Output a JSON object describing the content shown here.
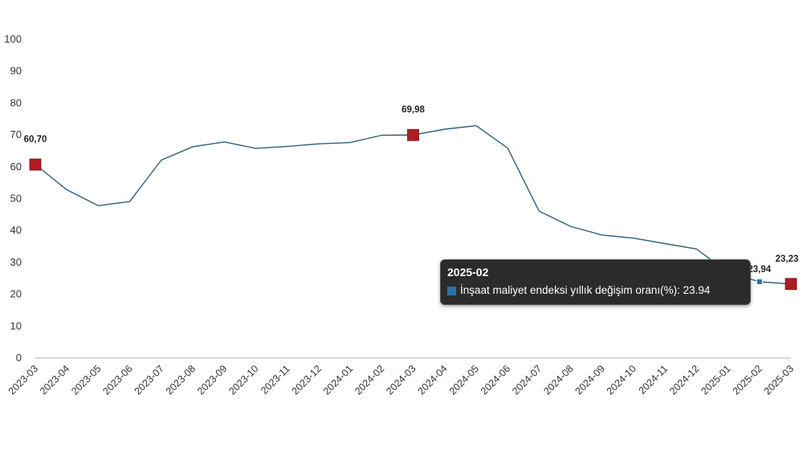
{
  "chart_data": {
    "type": "line",
    "categories": [
      "2023-03",
      "2023-04",
      "2023-05",
      "2023-06",
      "2023-07",
      "2023-08",
      "2023-09",
      "2023-10",
      "2023-11",
      "2023-12",
      "2024-01",
      "2024-02",
      "2024-03",
      "2024-04",
      "2024-05",
      "2024-06",
      "2024-07",
      "2024-08",
      "2024-09",
      "2024-10",
      "2024-11",
      "2024-12",
      "2025-01",
      "2025-02",
      "2025-03"
    ],
    "series": [
      {
        "name": "İnşaat maliyet endeksi yıllık değişim oranı(%)",
        "color": "#2f5f7f",
        "values": [
          60.7,
          52.8,
          47.8,
          49.1,
          62.1,
          66.3,
          67.8,
          65.8,
          66.4,
          67.2,
          67.6,
          69.9,
          69.98,
          71.8,
          72.9,
          65.9,
          46.1,
          41.3,
          38.6,
          37.6,
          35.9,
          34.2,
          26.8,
          23.94,
          23.23
        ]
      }
    ],
    "highlighted_points": [
      {
        "category": "2023-03",
        "label": "60,70"
      },
      {
        "category": "2024-03",
        "label": "69,98"
      },
      {
        "category": "2025-02",
        "label": "23,94"
      },
      {
        "category": "2025-03",
        "label": "23,23"
      }
    ],
    "y_ticks": [
      "0",
      "10",
      "20",
      "30",
      "40",
      "50",
      "60",
      "70",
      "80",
      "90",
      "100"
    ],
    "ylim": [
      0,
      100
    ],
    "grid": false,
    "marker_color": "#b01c24",
    "active_marker_color": "#2f6fa8"
  },
  "tooltip": {
    "title": "2025-02",
    "text": "İnşaat maliyet endeksi yıllık değişim oranı(%): 23.94",
    "swatch_color": "#2f6fa8"
  }
}
